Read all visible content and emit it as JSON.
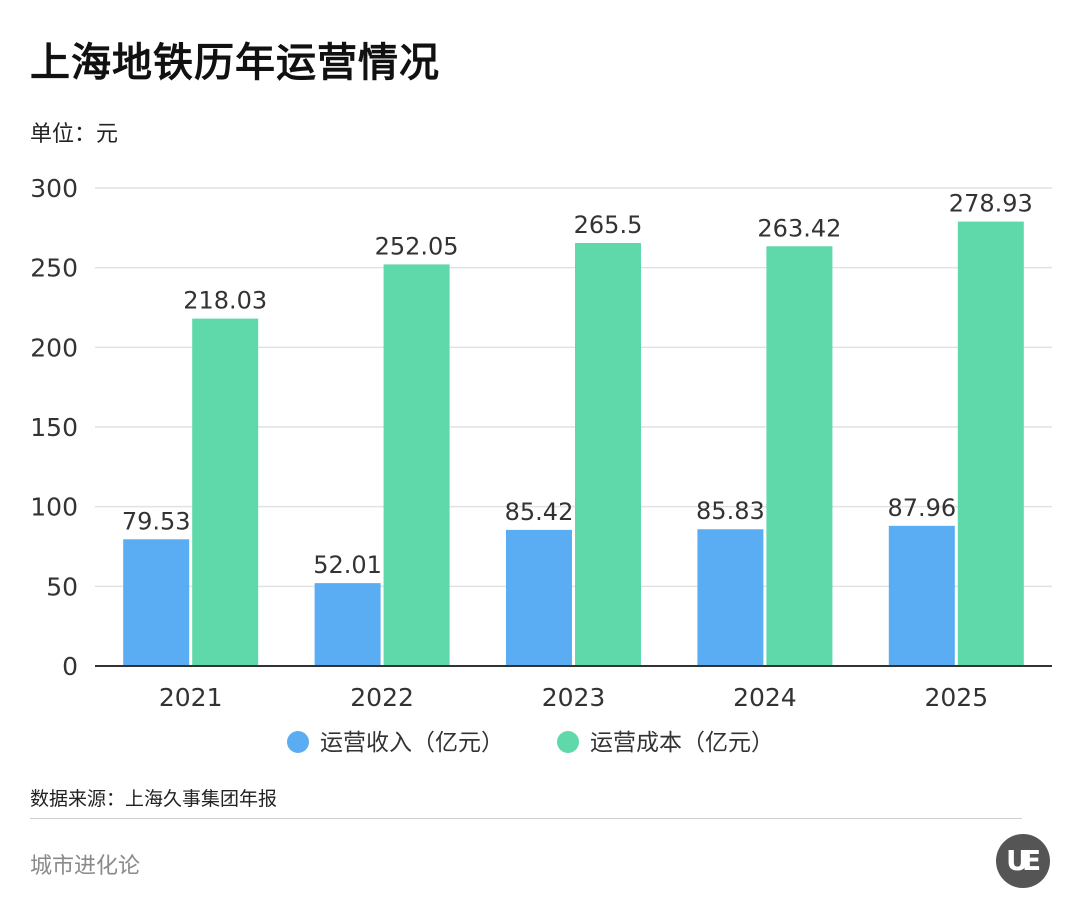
{
  "title": "上海地铁历年运营情况",
  "unit_label": "单位：元",
  "source_label": "数据来源：上海久事集团年报",
  "brand_label": "城市进化论",
  "logo": {
    "letters": [
      "U",
      "E"
    ]
  },
  "chart_data": {
    "type": "bar",
    "categories": [
      "2021",
      "2022",
      "2023",
      "2024",
      "2025"
    ],
    "series": [
      {
        "name": "运营收入（亿元）",
        "color": "#5aadf2",
        "values": [
          79.53,
          52.01,
          85.42,
          85.83,
          87.96
        ],
        "labels": [
          "79.53",
          "52.01",
          "85.42",
          "85.83",
          "87.96"
        ]
      },
      {
        "name": "运营成本（亿元）",
        "color": "#5fd8aa",
        "values": [
          218.03,
          252.05,
          265.5,
          263.42,
          278.93
        ],
        "labels": [
          "218.03",
          "252.05",
          "265.5",
          "263.42",
          "278.93"
        ]
      }
    ],
    "ylim": [
      0,
      300
    ],
    "yticks": [
      "0",
      "50",
      "100",
      "150",
      "200",
      "250",
      "300"
    ],
    "grid": true,
    "legend_position": "bottom"
  }
}
